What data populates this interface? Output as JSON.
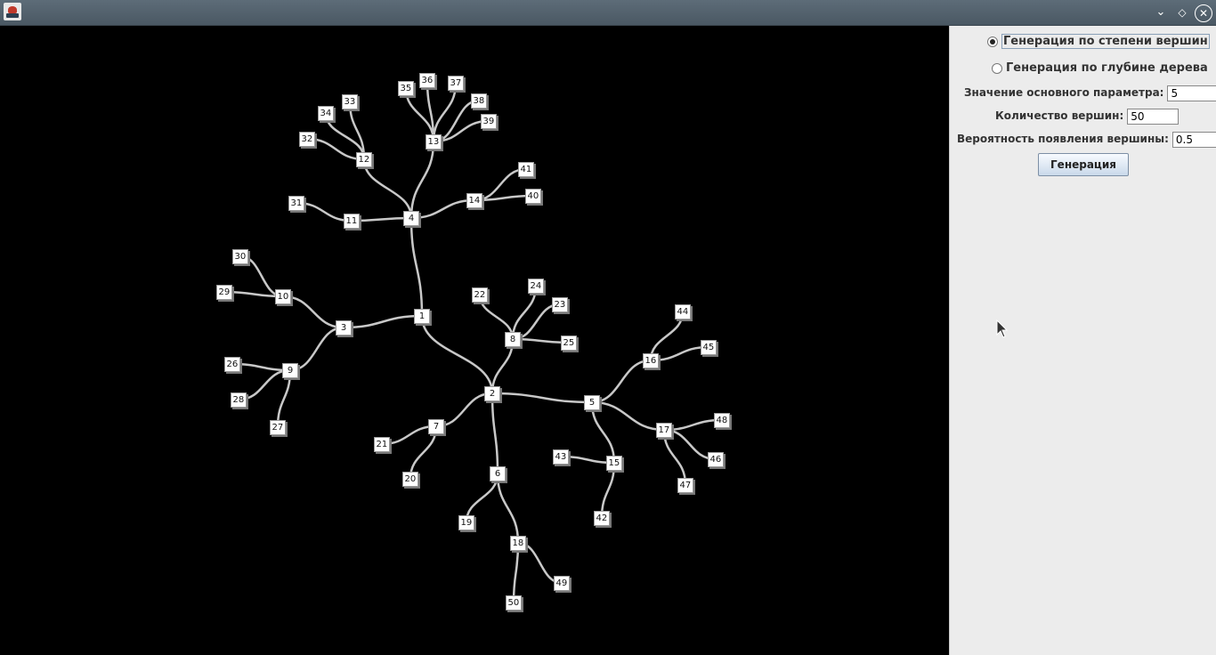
{
  "window": {
    "minimize_icon": "chevron-down-icon",
    "maximize_icon": "diamond-icon",
    "close_icon": "close-icon"
  },
  "tree": {
    "line_color": "#c8c8c8",
    "nodes": [
      {
        "id": "1"
      },
      {
        "id": "2"
      },
      {
        "id": "3"
      },
      {
        "id": "4"
      },
      {
        "id": "5"
      },
      {
        "id": "6"
      },
      {
        "id": "7"
      },
      {
        "id": "8"
      },
      {
        "id": "9"
      },
      {
        "id": "10"
      },
      {
        "id": "11"
      },
      {
        "id": "12"
      },
      {
        "id": "13"
      },
      {
        "id": "14"
      },
      {
        "id": "15"
      },
      {
        "id": "16"
      },
      {
        "id": "17"
      },
      {
        "id": "18"
      },
      {
        "id": "19"
      },
      {
        "id": "20"
      },
      {
        "id": "21"
      },
      {
        "id": "22"
      },
      {
        "id": "23"
      },
      {
        "id": "24"
      },
      {
        "id": "25"
      },
      {
        "id": "26"
      },
      {
        "id": "27"
      },
      {
        "id": "28"
      },
      {
        "id": "29"
      },
      {
        "id": "30"
      },
      {
        "id": "31"
      },
      {
        "id": "32"
      },
      {
        "id": "33"
      },
      {
        "id": "34"
      },
      {
        "id": "35"
      },
      {
        "id": "36"
      },
      {
        "id": "37"
      },
      {
        "id": "38"
      },
      {
        "id": "39"
      },
      {
        "id": "40"
      },
      {
        "id": "41"
      },
      {
        "id": "42"
      },
      {
        "id": "43"
      },
      {
        "id": "44"
      },
      {
        "id": "45"
      },
      {
        "id": "46"
      },
      {
        "id": "47"
      },
      {
        "id": "48"
      },
      {
        "id": "49"
      },
      {
        "id": "50"
      }
    ],
    "edges": [
      [
        "1",
        "2"
      ],
      [
        "1",
        "3"
      ],
      [
        "1",
        "4"
      ],
      [
        "2",
        "5"
      ],
      [
        "2",
        "6"
      ],
      [
        "2",
        "7"
      ],
      [
        "2",
        "8"
      ],
      [
        "3",
        "9"
      ],
      [
        "3",
        "10"
      ],
      [
        "4",
        "11"
      ],
      [
        "4",
        "12"
      ],
      [
        "4",
        "13"
      ],
      [
        "4",
        "14"
      ],
      [
        "5",
        "15"
      ],
      [
        "5",
        "16"
      ],
      [
        "5",
        "17"
      ],
      [
        "6",
        "18"
      ],
      [
        "6",
        "19"
      ],
      [
        "7",
        "20"
      ],
      [
        "7",
        "21"
      ],
      [
        "8",
        "22"
      ],
      [
        "8",
        "23"
      ],
      [
        "8",
        "24"
      ],
      [
        "8",
        "25"
      ],
      [
        "9",
        "26"
      ],
      [
        "9",
        "27"
      ],
      [
        "9",
        "28"
      ],
      [
        "10",
        "29"
      ],
      [
        "10",
        "30"
      ],
      [
        "11",
        "31"
      ],
      [
        "12",
        "32"
      ],
      [
        "12",
        "33"
      ],
      [
        "12",
        "34"
      ],
      [
        "13",
        "35"
      ],
      [
        "13",
        "36"
      ],
      [
        "13",
        "37"
      ],
      [
        "13",
        "38"
      ],
      [
        "13",
        "39"
      ],
      [
        "14",
        "40"
      ],
      [
        "14",
        "41"
      ],
      [
        "15",
        "42"
      ],
      [
        "15",
        "43"
      ],
      [
        "16",
        "44"
      ],
      [
        "16",
        "45"
      ],
      [
        "17",
        "46"
      ],
      [
        "17",
        "47"
      ],
      [
        "17",
        "48"
      ],
      [
        "18",
        "49"
      ],
      [
        "18",
        "50"
      ]
    ]
  },
  "panel": {
    "radio_degree": {
      "label": "Генерация по степени вершин",
      "checked": true
    },
    "radio_depth": {
      "label": "Генерация по глубине дерева",
      "checked": false
    },
    "main_param": {
      "label": "Значение основного параметра:",
      "value": "5"
    },
    "vertex_count": {
      "label": "Количество вершин:",
      "value": "50"
    },
    "probability": {
      "label": "Вероятность появления вершины:",
      "value": "0.5"
    },
    "generate_button": "Генерация"
  }
}
